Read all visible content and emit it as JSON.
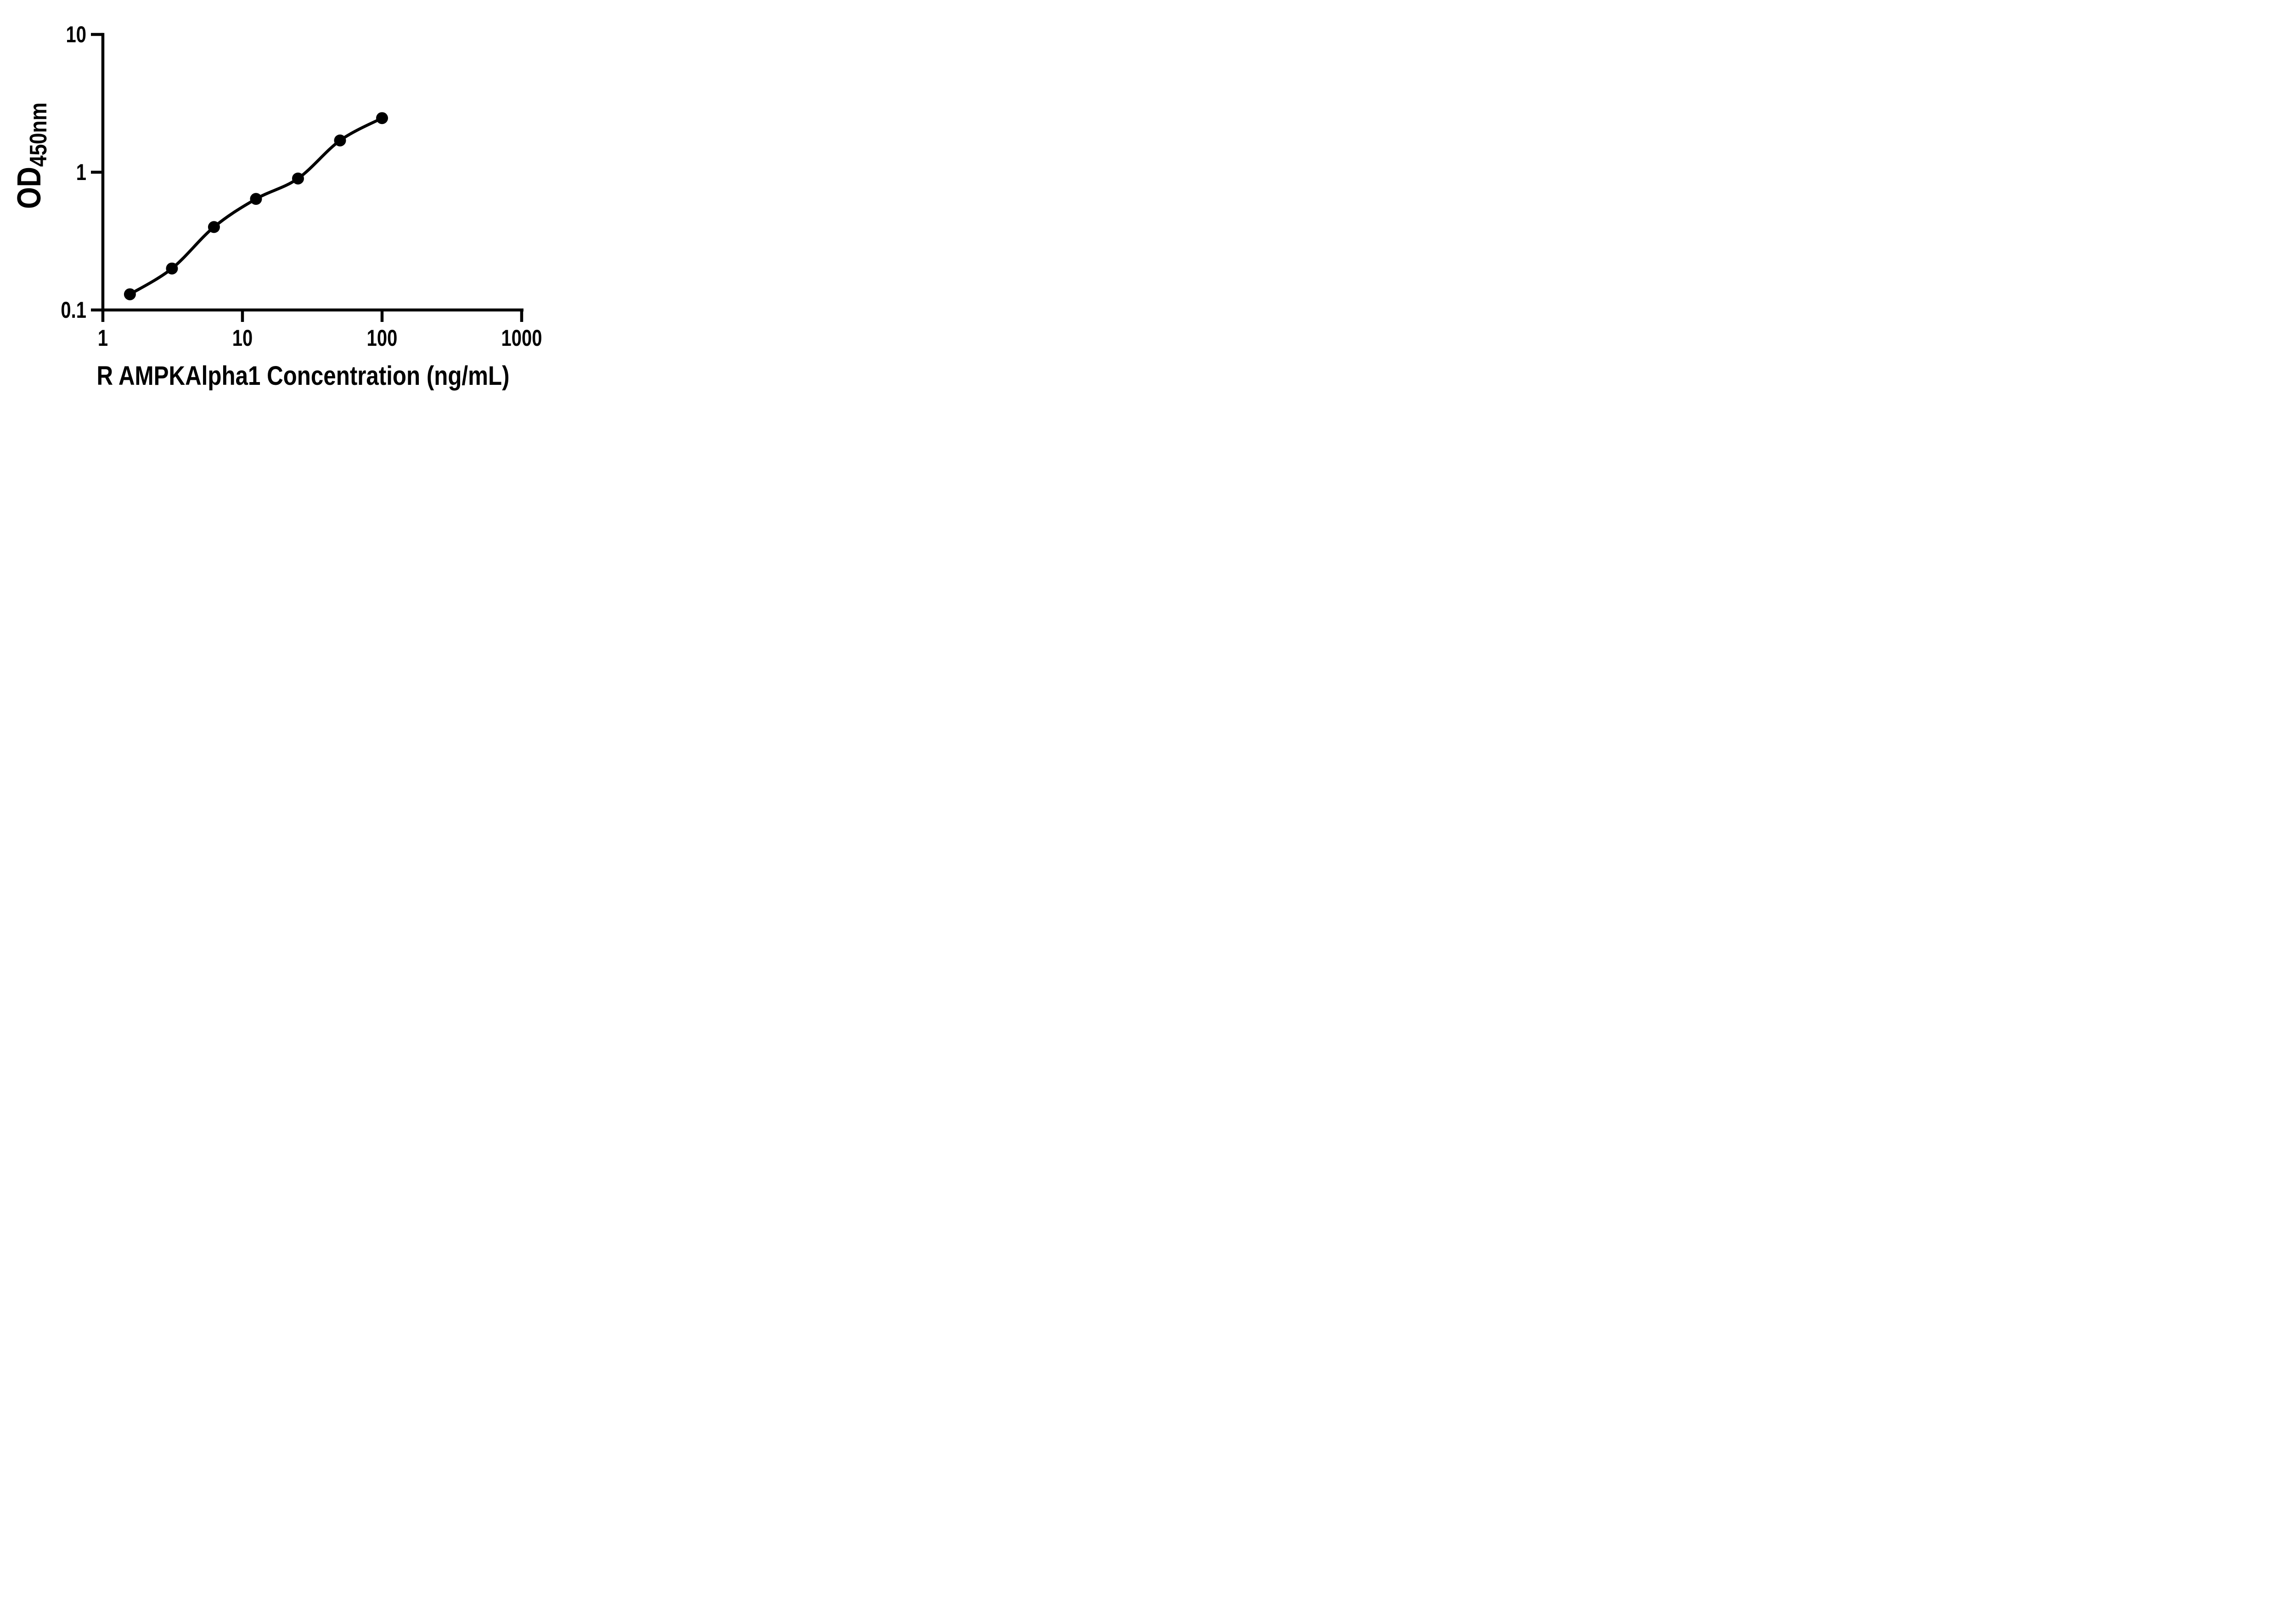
{
  "figure": {
    "background_color": "#ffffff",
    "ink_color": "#000000"
  },
  "chart_data": {
    "type": "scatter",
    "subtype": "standard-curve-with-fit-line",
    "title": "",
    "xlabel": "R AMPKAlpha1 Concentration (ng/mL)",
    "ylabel": "OD",
    "ylabel_subscript": "450nm",
    "x_scale": "log10",
    "y_scale": "log10",
    "xlim": [
      1,
      1000
    ],
    "ylim": [
      0.1,
      10
    ],
    "x_ticks": [
      1,
      10,
      100,
      1000
    ],
    "x_tick_labels": [
      "1",
      "10",
      "100",
      "1000"
    ],
    "y_ticks": [
      10,
      1,
      0.1
    ],
    "y_tick_labels": [
      "10",
      "1",
      "0.1"
    ],
    "grid": false,
    "legend": null,
    "series": [
      {
        "name": "standard-curve",
        "marker": "filled-circle",
        "marker_color": "#000000",
        "line": "smooth-fit-line",
        "line_color": "#000000",
        "x": [
          1.5625,
          3.125,
          6.25,
          12.5,
          25,
          50,
          100
        ],
        "y": [
          0.13,
          0.2,
          0.4,
          0.64,
          0.9,
          1.7,
          2.47
        ]
      }
    ]
  }
}
